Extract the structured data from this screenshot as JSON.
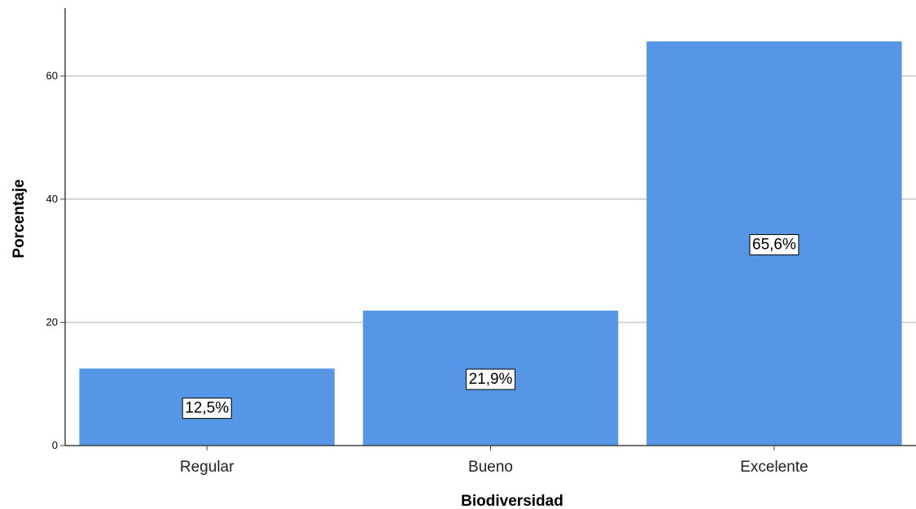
{
  "chart_data": {
    "type": "bar",
    "categories": [
      "Regular",
      "Bueno",
      "Excelente"
    ],
    "values": [
      12.5,
      21.9,
      65.6
    ],
    "data_labels": [
      "12,5%",
      "21,9%",
      "65,6%"
    ],
    "xlabel": "Biodiversidad",
    "ylabel": "Porcentaje",
    "ylim": [
      0,
      71
    ],
    "yticks": [
      0,
      20,
      40,
      60
    ],
    "grid": true,
    "bar_color": "#5596E6",
    "grid_color": "#C8C8C8"
  }
}
